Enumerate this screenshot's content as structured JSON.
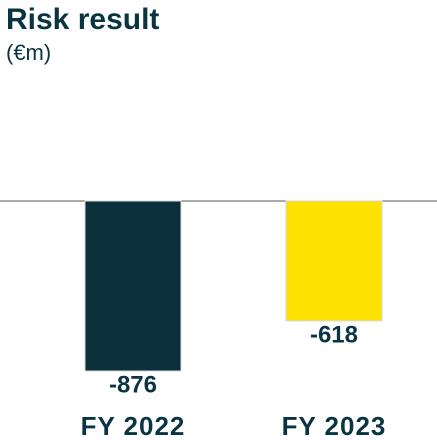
{
  "chart_data": {
    "type": "bar",
    "title": "Risk result",
    "subtitle": "(€m)",
    "categories": [
      "FY 2022",
      "FY 2023"
    ],
    "values": [
      -876,
      -618
    ],
    "colors": [
      "#0b2f3b",
      "#fde100"
    ]
  }
}
